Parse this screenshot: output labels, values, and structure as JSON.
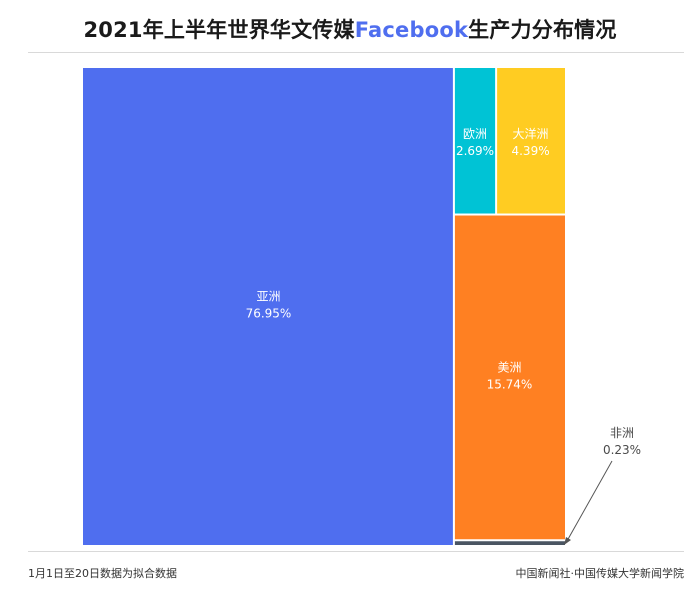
{
  "title": {
    "part1": "2021年上半年世界华文传媒",
    "accent": "Facebook",
    "part2": "生产力分布情况"
  },
  "footer": {
    "note": "1月1日至20日数据为拟合数据",
    "source": "中国新闻社·中国传媒大学新闻学院"
  },
  "colors": {
    "title_accent": "#4F6EEF",
    "asia": "#4F6EEF",
    "europe": "#00C3D5",
    "oceania": "#FFCC22",
    "americas": "#FF8022",
    "africa": "#4A5562",
    "label_light": "#ffffff",
    "label_dark": "#4a4a4a"
  },
  "chart_data": {
    "type": "treemap",
    "title": "2021年上半年世界华文传媒Facebook生产力分布情况",
    "unit": "%",
    "items": [
      {
        "name": "亚洲",
        "value": 76.95,
        "label": "76.95%"
      },
      {
        "name": "欧洲",
        "value": 2.69,
        "label": "2.69%"
      },
      {
        "name": "大洋洲",
        "value": 4.39,
        "label": "4.39%"
      },
      {
        "name": "美洲",
        "value": 15.74,
        "label": "15.74%"
      },
      {
        "name": "非洲",
        "value": 0.23,
        "label": "0.23%"
      }
    ]
  }
}
